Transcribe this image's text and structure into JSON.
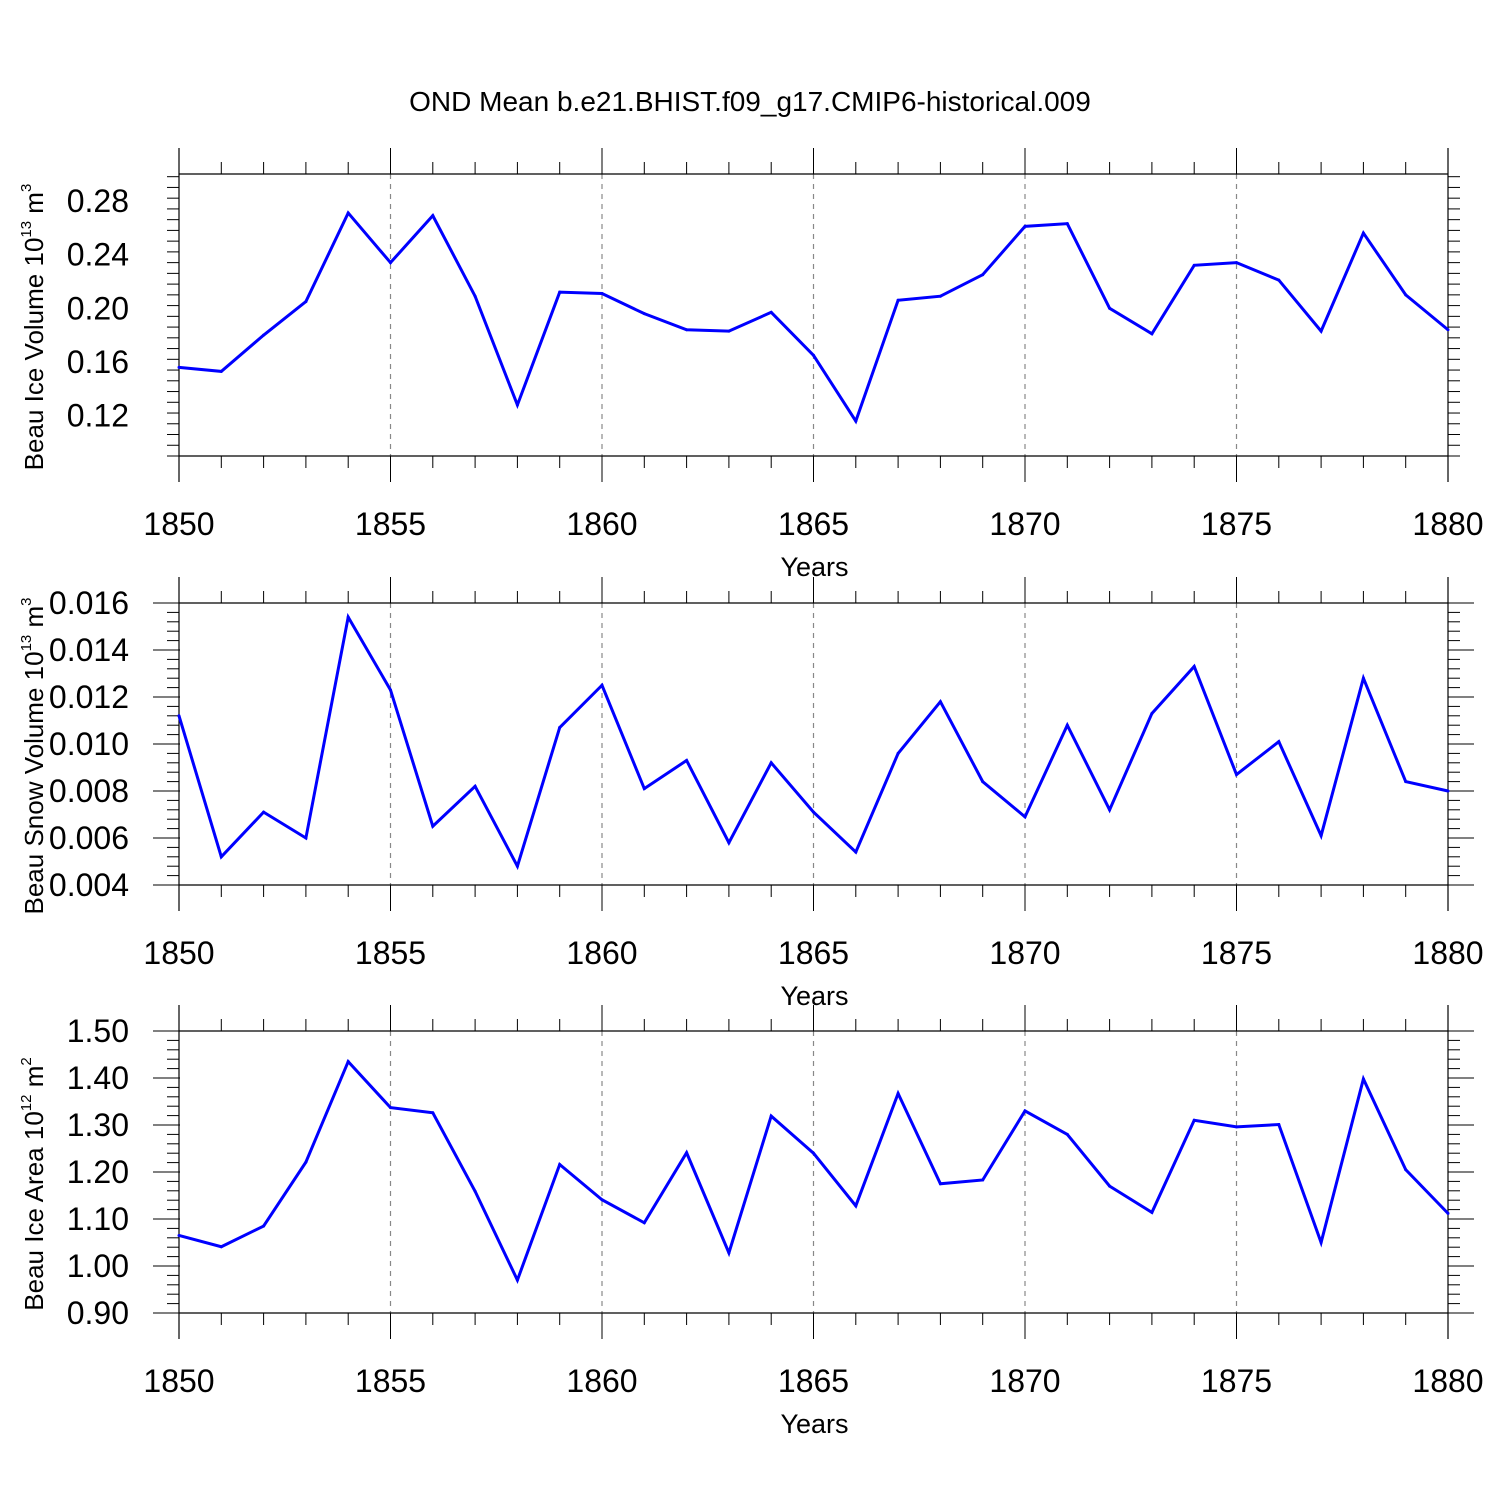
{
  "figure": {
    "title": "OND Mean b.e21.BHIST.f09_g17.CMIP6-historical.009",
    "line_color": "#0000ff",
    "grid_color": "#888888"
  },
  "chart_data": [
    {
      "type": "line",
      "title": "OND Mean b.e21.BHIST.f09_g17.CMIP6-historical.009",
      "xlabel": "Years",
      "ylabel": {
        "prefix": "Beau Ice Volume 10",
        "exponent": "13",
        "unit": " m",
        "unit_exponent": "3"
      },
      "xlim": [
        1850,
        1880
      ],
      "ylim": [
        0.09,
        0.3
      ],
      "xticks": [
        "1850",
        "1855",
        "1860",
        "1865",
        "1870",
        "1875",
        "1880"
      ],
      "yticks": [
        "0.12",
        "0.16",
        "0.20",
        "0.24",
        "0.28"
      ],
      "yticks_values": [
        0.12,
        0.16,
        0.2,
        0.24,
        0.28
      ],
      "grid": "vertical dashed at major x ticks",
      "x": [
        1850,
        1851,
        1852,
        1853,
        1854,
        1855,
        1856,
        1857,
        1858,
        1859,
        1860,
        1861,
        1862,
        1863,
        1864,
        1865,
        1866,
        1867,
        1868,
        1869,
        1870,
        1871,
        1872,
        1873,
        1874,
        1875,
        1876,
        1877,
        1878,
        1879,
        1880
      ],
      "series": [
        {
          "values": [
            0.156,
            0.153,
            0.18,
            0.205,
            0.271,
            0.234,
            0.269,
            0.209,
            0.128,
            0.212,
            0.211,
            0.196,
            0.184,
            0.183,
            0.197,
            0.165,
            0.116,
            0.206,
            0.209,
            0.225,
            0.261,
            0.263,
            0.2,
            0.181,
            0.232,
            0.234,
            0.221,
            0.183,
            0.256,
            0.21,
            0.184
          ]
        }
      ]
    },
    {
      "type": "line",
      "xlabel": "Years",
      "ylabel": {
        "prefix": "Beau Snow Volume 10",
        "exponent": "13",
        "unit": " m",
        "unit_exponent": "3"
      },
      "xlim": [
        1850,
        1880
      ],
      "ylim": [
        0.004,
        0.016
      ],
      "xticks": [
        "1850",
        "1855",
        "1860",
        "1865",
        "1870",
        "1875",
        "1880"
      ],
      "yticks": [
        "0.004",
        "0.006",
        "0.008",
        "0.010",
        "0.012",
        "0.014",
        "0.016"
      ],
      "yticks_values": [
        0.004,
        0.006,
        0.008,
        0.01,
        0.012,
        0.014,
        0.016
      ],
      "grid": "vertical dashed at major x ticks",
      "x": [
        1850,
        1851,
        1852,
        1853,
        1854,
        1855,
        1856,
        1857,
        1858,
        1859,
        1860,
        1861,
        1862,
        1863,
        1864,
        1865,
        1866,
        1867,
        1868,
        1869,
        1870,
        1871,
        1872,
        1873,
        1874,
        1875,
        1876,
        1877,
        1878,
        1879,
        1880
      ],
      "series": [
        {
          "values": [
            0.0112,
            0.0052,
            0.0071,
            0.006,
            0.0154,
            0.0123,
            0.0065,
            0.0082,
            0.0048,
            0.0107,
            0.0125,
            0.0081,
            0.0093,
            0.0058,
            0.0092,
            0.0071,
            0.0054,
            0.0096,
            0.0118,
            0.0084,
            0.0069,
            0.0108,
            0.0072,
            0.0113,
            0.0133,
            0.0087,
            0.0101,
            0.0061,
            0.0128,
            0.0084,
            0.008
          ]
        }
      ]
    },
    {
      "type": "line",
      "xlabel": "Years",
      "ylabel": {
        "prefix": "Beau Ice Area 10",
        "exponent": "12",
        "unit": " m",
        "unit_exponent": "2"
      },
      "xlim": [
        1850,
        1880
      ],
      "ylim": [
        0.9,
        1.5
      ],
      "xticks": [
        "1850",
        "1855",
        "1860",
        "1865",
        "1870",
        "1875",
        "1880"
      ],
      "yticks": [
        "0.90",
        "1.00",
        "1.10",
        "1.20",
        "1.30",
        "1.40",
        "1.50"
      ],
      "yticks_values": [
        0.9,
        1.0,
        1.1,
        1.2,
        1.3,
        1.4,
        1.5
      ],
      "grid": "vertical dashed at major x ticks",
      "x": [
        1850,
        1851,
        1852,
        1853,
        1854,
        1855,
        1856,
        1857,
        1858,
        1859,
        1860,
        1861,
        1862,
        1863,
        1864,
        1865,
        1866,
        1867,
        1868,
        1869,
        1870,
        1871,
        1872,
        1873,
        1874,
        1875,
        1876,
        1877,
        1878,
        1879,
        1880
      ],
      "series": [
        {
          "values": [
            1.065,
            1.041,
            1.085,
            1.221,
            1.435,
            1.337,
            1.326,
            1.159,
            0.97,
            1.216,
            1.141,
            1.092,
            1.241,
            1.028,
            1.319,
            1.24,
            1.128,
            1.367,
            1.175,
            1.183,
            1.33,
            1.28,
            1.17,
            1.114,
            1.31,
            1.296,
            1.301,
            1.05,
            1.398,
            1.205,
            1.112
          ]
        }
      ]
    }
  ]
}
